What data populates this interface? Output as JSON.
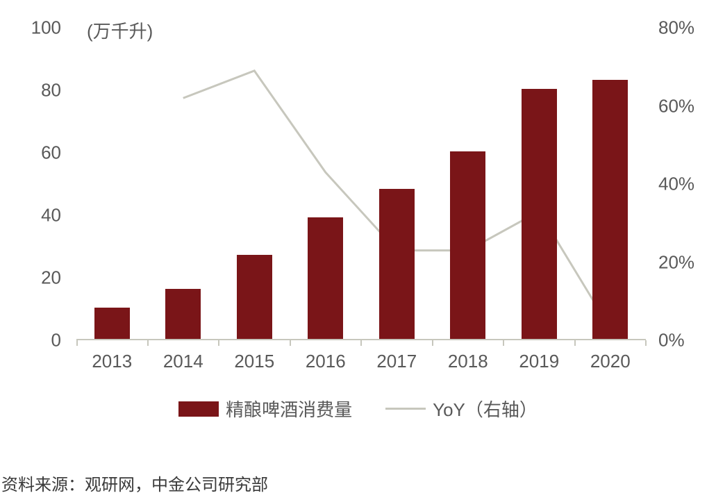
{
  "chart": {
    "type": "bar+line",
    "unit_label": "(万千升)",
    "background_color": "#ffffff",
    "axis_color": "#c7c7bd",
    "tick_label_color": "#595959",
    "tick_label_fontsize": 26,
    "categories": [
      "2013",
      "2014",
      "2015",
      "2016",
      "2017",
      "2018",
      "2019",
      "2020"
    ],
    "bars": {
      "label": "精酿啤酒消费量",
      "color": "#7a1518",
      "values": [
        10,
        16,
        27,
        39,
        48,
        60,
        80,
        83
      ],
      "bar_width_frac": 0.5
    },
    "line": {
      "label": "YoY（右轴）",
      "color": "#c7c7bd",
      "width": 3,
      "values": [
        null,
        62,
        69,
        43,
        23,
        23,
        33,
        3
      ]
    },
    "y_left": {
      "min": 0,
      "max": 100,
      "step": 20,
      "ticks": [
        0,
        20,
        40,
        60,
        80,
        100
      ]
    },
    "y_right": {
      "min": 0,
      "max": 80,
      "step": 20,
      "ticks": [
        0,
        20,
        40,
        60,
        80
      ],
      "suffix": "%"
    }
  },
  "legend": {
    "bar_label": "精酿啤酒消费量",
    "line_label": "YoY（右轴）"
  },
  "source": "资料来源：观研网，中金公司研究部"
}
